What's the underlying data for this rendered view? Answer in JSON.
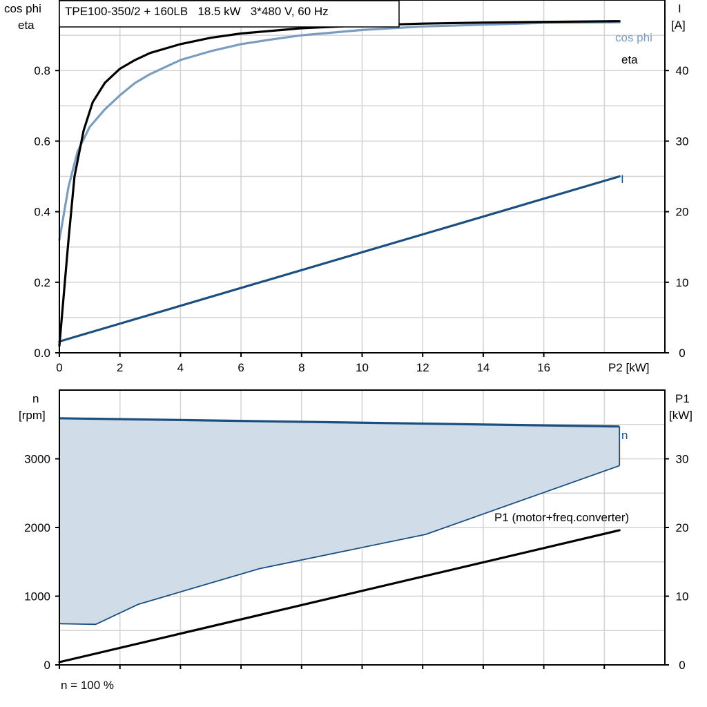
{
  "chart_data": [
    {
      "type": "line",
      "title": "TPE100-350/2 + 160LB   18.5 kW   3*480 V, 60 Hz",
      "ylabel_left": [
        "cos phi",
        "eta"
      ],
      "ylabel_right": [
        "I",
        "[A]"
      ],
      "xlabel": "P2 [kW]",
      "xlim": [
        0,
        20
      ],
      "ylim_left": [
        0,
        1.0
      ],
      "ylim_right": [
        0,
        50
      ],
      "x_ticks": [
        0,
        2,
        4,
        6,
        8,
        10,
        12,
        14,
        16
      ],
      "y_ticks_left": [
        0.0,
        0.2,
        0.4,
        0.6,
        0.8
      ],
      "y_tick_labels_left": [
        "0.0",
        "0.2",
        "0.4",
        "0.6",
        "0.8"
      ],
      "y_ticks_right": [
        0,
        10,
        20,
        30,
        40
      ],
      "grid": true,
      "series": [
        {
          "name": "cos phi",
          "axis": "left",
          "color": "#7a9dbf",
          "x": [
            0,
            0.3,
            0.6,
            1.0,
            1.5,
            2.0,
            2.5,
            3.0,
            4.0,
            5.0,
            6.0,
            7.0,
            8.0,
            10.0,
            12.0,
            14.0,
            16.0,
            18.5
          ],
          "y": [
            0.32,
            0.47,
            0.57,
            0.64,
            0.69,
            0.73,
            0.765,
            0.79,
            0.83,
            0.855,
            0.875,
            0.888,
            0.9,
            0.915,
            0.925,
            0.93,
            0.935,
            0.937
          ]
        },
        {
          "name": "eta",
          "axis": "left",
          "color": "#000000",
          "x": [
            0,
            0.3,
            0.5,
            0.8,
            1.1,
            1.5,
            2.0,
            2.5,
            3.0,
            4.0,
            5.0,
            6.0,
            8.0,
            10.0,
            12.0,
            14.0,
            16.0,
            18.5
          ],
          "y": [
            0.02,
            0.32,
            0.5,
            0.63,
            0.71,
            0.765,
            0.805,
            0.83,
            0.85,
            0.875,
            0.893,
            0.905,
            0.92,
            0.928,
            0.933,
            0.936,
            0.938,
            0.94
          ]
        },
        {
          "name": "I",
          "axis": "right",
          "color": "#1b4f82",
          "x": [
            0,
            18.5
          ],
          "y": [
            1.6,
            25.0
          ]
        }
      ]
    },
    {
      "type": "area",
      "ylabel_left": [
        "n",
        "[rpm]"
      ],
      "ylabel_right": [
        "P1",
        "[kW]"
      ],
      "xlim": [
        0,
        20
      ],
      "ylim_left": [
        0,
        4000
      ],
      "ylim_right": [
        0,
        40
      ],
      "y_ticks_left": [
        0,
        1000,
        2000,
        3000
      ],
      "y_ticks_right": [
        0,
        10,
        20,
        30
      ],
      "grid": true,
      "footnote": "n = 100 %",
      "series": [
        {
          "name": "n",
          "axis": "left",
          "color": "#1b4f82",
          "fill": "#d0dce8",
          "upper_x": [
            0,
            18.5
          ],
          "upper_y": [
            3590,
            3470
          ],
          "lower_x": [
            0,
            1.2,
            2.6,
            6.6,
            12.1,
            18.5
          ],
          "lower_y": [
            600,
            590,
            880,
            1400,
            1900,
            2900
          ]
        },
        {
          "name": "P1 (motor+freq.converter)",
          "axis": "right",
          "color": "#000000",
          "x": [
            0,
            18.5
          ],
          "y": [
            0.4,
            19.6
          ]
        }
      ]
    }
  ]
}
